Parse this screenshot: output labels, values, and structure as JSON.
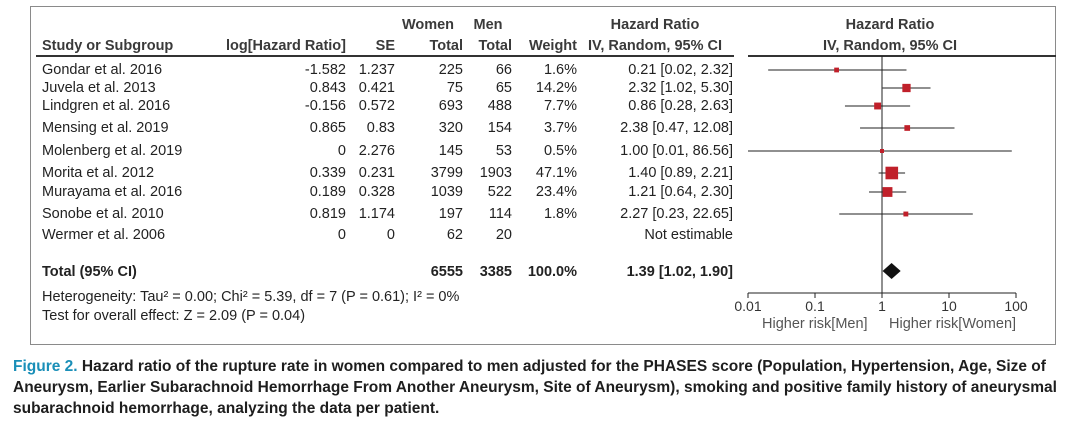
{
  "header": {
    "study_col": "Study or Subgroup",
    "loghr_col": "log[Hazard Ratio]",
    "se_col": "SE",
    "women_top": "Women",
    "women_sub": "Total",
    "men_top": "Men",
    "men_sub": "Total",
    "weight_col": "Weight",
    "hr_top": "Hazard Ratio",
    "hr_sub": "IV, Random, 95% CI",
    "plot_top": "Hazard Ratio",
    "plot_sub": "IV, Random, 95% CI"
  },
  "studies": [
    {
      "name": "Gondar et al. 2016",
      "loghr": "-1.582",
      "se": "1.237",
      "women": "225",
      "men": "66",
      "weight": "1.6%",
      "ci_text": "0.21 [0.02, 2.32]"
    },
    {
      "name": "Juvela et al. 2013",
      "loghr": "0.843",
      "se": "0.421",
      "women": "75",
      "men": "65",
      "weight": "14.2%",
      "ci_text": "2.32 [1.02, 5.30]"
    },
    {
      "name": "Lindgren et al. 2016",
      "loghr": "-0.156",
      "se": "0.572",
      "women": "693",
      "men": "488",
      "weight": "7.7%",
      "ci_text": "0.86 [0.28, 2.63]"
    },
    {
      "name": "Mensing et al. 2019",
      "loghr": "0.865",
      "se": "0.83",
      "women": "320",
      "men": "154",
      "weight": "3.7%",
      "ci_text": "2.38 [0.47, 12.08]"
    },
    {
      "name": "Molenberg et al. 2019",
      "loghr": "0",
      "se": "2.276",
      "women": "145",
      "men": "53",
      "weight": "0.5%",
      "ci_text": "1.00 [0.01, 86.56]"
    },
    {
      "name": "Morita et al. 2012",
      "loghr": "0.339",
      "se": "0.231",
      "women": "3799",
      "men": "1903",
      "weight": "47.1%",
      "ci_text": "1.40 [0.89, 2.21]"
    },
    {
      "name": "Murayama et al. 2016",
      "loghr": "0.189",
      "se": "0.328",
      "women": "1039",
      "men": "522",
      "weight": "23.4%",
      "ci_text": "1.21 [0.64, 2.30]"
    },
    {
      "name": "Sonobe et al. 2010",
      "loghr": "0.819",
      "se": "1.174",
      "women": "197",
      "men": "114",
      "weight": "1.8%",
      "ci_text": "2.27 [0.23, 22.65]"
    },
    {
      "name": "Wermer et al. 2006",
      "loghr": "0",
      "se": "0",
      "women": "62",
      "men": "20",
      "weight": "",
      "ci_text": "Not estimable"
    }
  ],
  "total": {
    "label": "Total (95% CI)",
    "women": "6555",
    "men": "3385",
    "weight": "100.0%",
    "ci_text": "1.39 [1.02, 1.90]"
  },
  "footnotes": {
    "heterogeneity": "Heterogeneity: Tau² = 0.00; Chi² = 5.39, df = 7 (P = 0.61); I² = 0%",
    "overall": "Test for overall effect: Z = 2.09 (P = 0.04)"
  },
  "axis_labels": {
    "left": "Higher risk[Men]",
    "right": "Higher risk[Women]"
  },
  "caption": {
    "label": "Figure 2.",
    "text": " Hazard ratio of the rupture rate in women compared to men adjusted for the  PHASES score (Population, Hypertension, Age, Size of Aneurysm, Earlier Subarachnoid Hemorrhage From Another Aneurysm, Site of Aneurysm), smoking and positive family history of aneurysmal subarachnoid hemorrhage, analyzing the data per patient."
  },
  "chart_data": {
    "type": "forest",
    "title": "Hazard Ratio",
    "subtitle": "IV, Random, 95% CI",
    "x_scale": "log",
    "xlim": [
      0.01,
      100
    ],
    "x_ticks": [
      "0.01",
      "0.1",
      "1",
      "10",
      "100"
    ],
    "reference_line": 1,
    "marker_color": "#c0202a",
    "studies": [
      {
        "name": "Gondar et al. 2016",
        "hr": 0.21,
        "lo": 0.02,
        "hi": 2.32,
        "weight": 1.6
      },
      {
        "name": "Juvela et al. 2013",
        "hr": 2.32,
        "lo": 1.02,
        "hi": 5.3,
        "weight": 14.2
      },
      {
        "name": "Lindgren et al. 2016",
        "hr": 0.86,
        "lo": 0.28,
        "hi": 2.63,
        "weight": 7.7
      },
      {
        "name": "Mensing et al. 2019",
        "hr": 2.38,
        "lo": 0.47,
        "hi": 12.08,
        "weight": 3.7
      },
      {
        "name": "Molenberg et al. 2019",
        "hr": 1.0,
        "lo": 0.01,
        "hi": 86.56,
        "weight": 0.5
      },
      {
        "name": "Morita et al. 2012",
        "hr": 1.4,
        "lo": 0.89,
        "hi": 2.21,
        "weight": 47.1
      },
      {
        "name": "Murayama et al. 2016",
        "hr": 1.21,
        "lo": 0.64,
        "hi": 2.3,
        "weight": 23.4
      },
      {
        "name": "Sonobe et al. 2010",
        "hr": 2.27,
        "lo": 0.23,
        "hi": 22.65,
        "weight": 1.8
      }
    ],
    "pooled": {
      "hr": 1.39,
      "lo": 1.02,
      "hi": 1.9
    }
  }
}
